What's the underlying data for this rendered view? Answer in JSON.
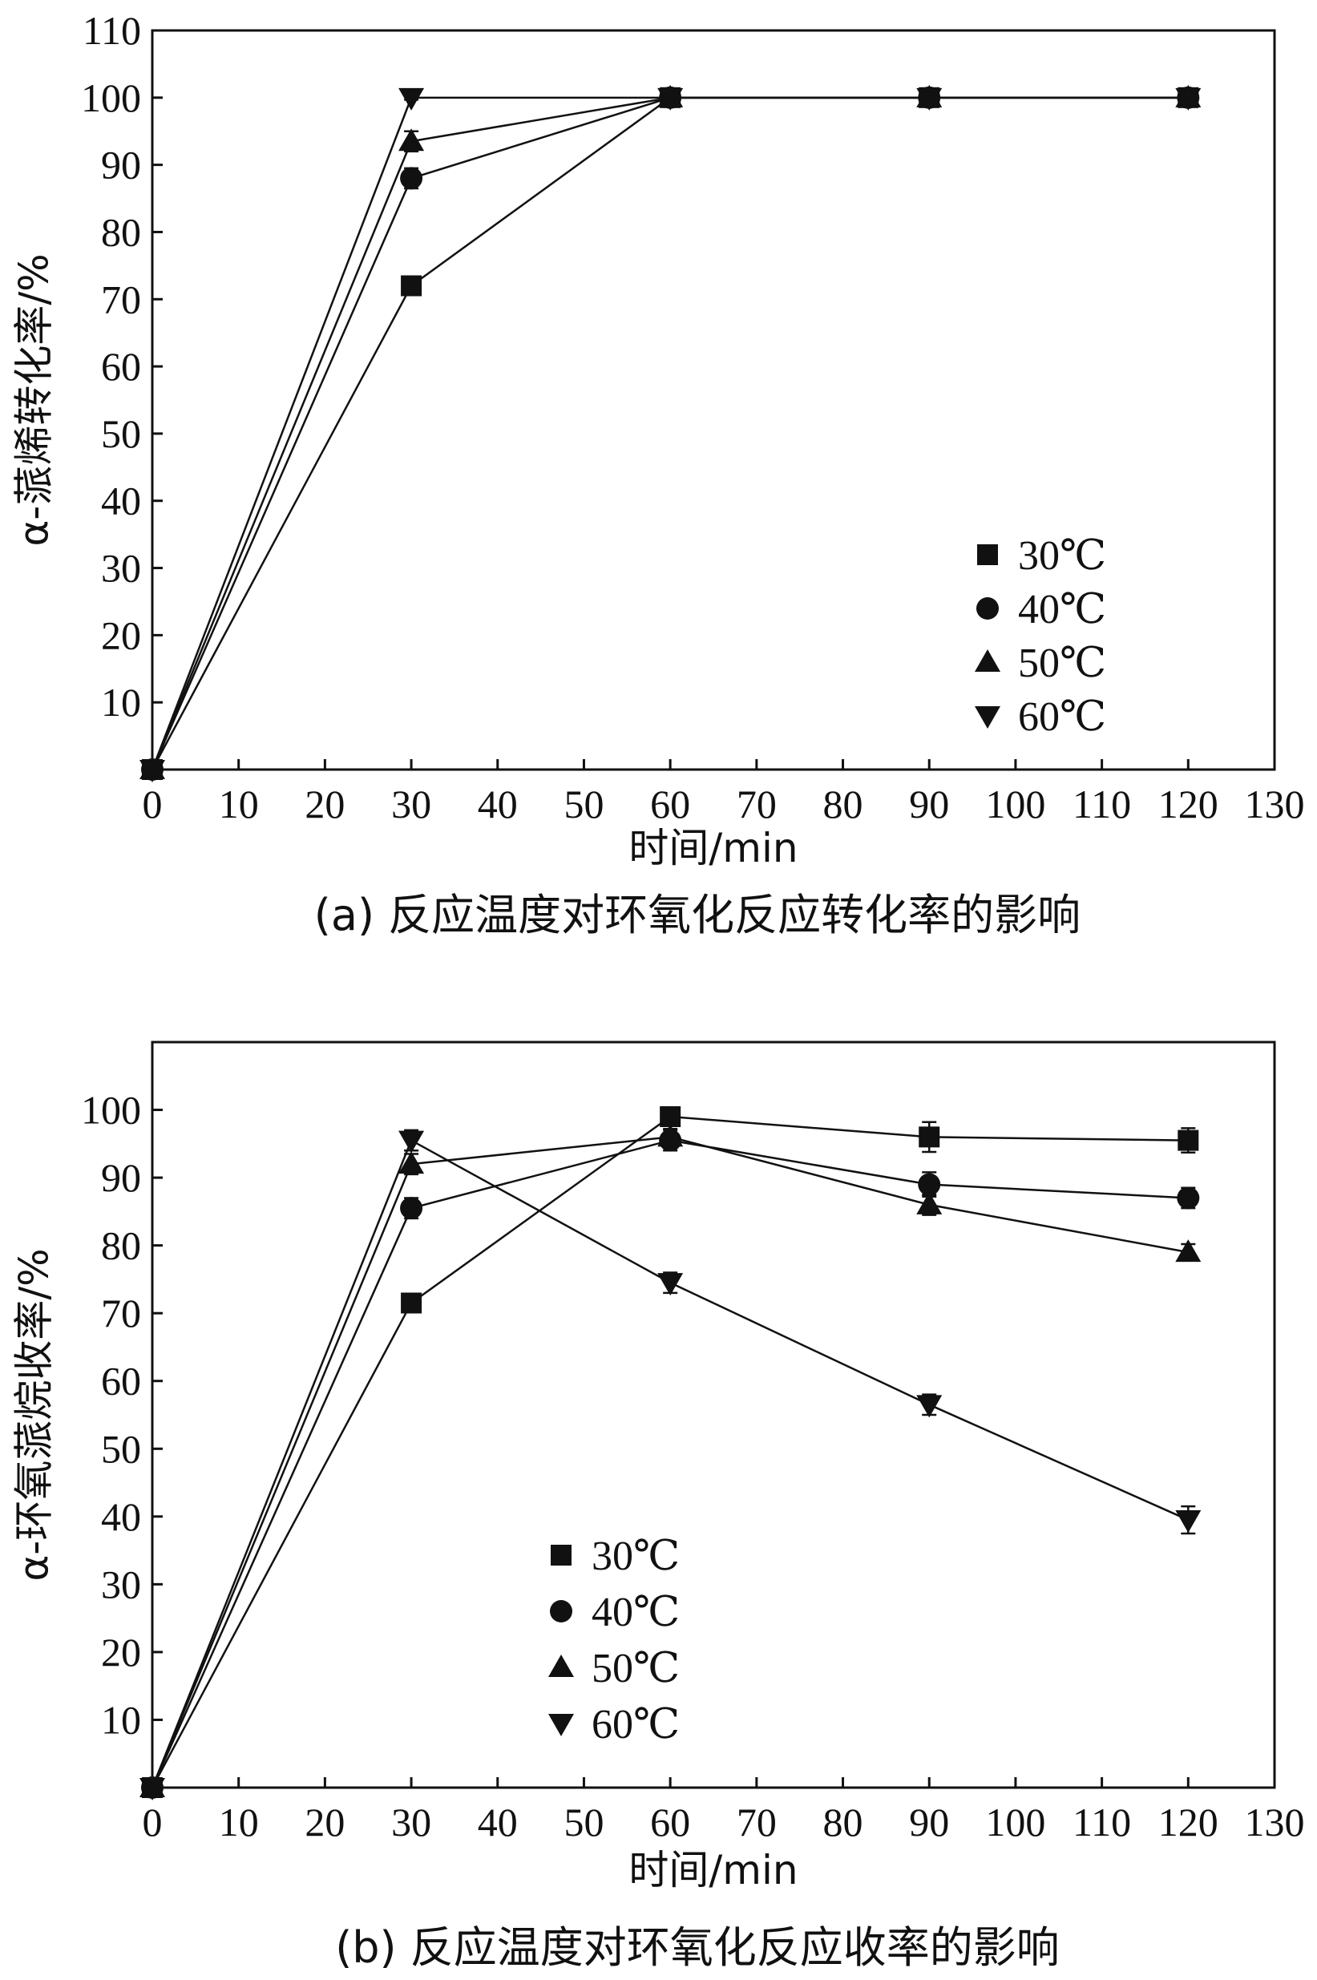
{
  "chart_data": [
    {
      "type": "line",
      "caption": "(a) 反应温度对环氧化反应转化率的影响",
      "xlabel": "时间/min",
      "ylabel": "α-蒎烯转化率/%",
      "xlim": [
        0,
        130
      ],
      "ylim": [
        0,
        110
      ],
      "xticks": [
        0,
        10,
        20,
        30,
        40,
        50,
        60,
        70,
        80,
        90,
        100,
        110,
        120,
        130
      ],
      "yticks": [
        10,
        20,
        30,
        40,
        50,
        60,
        70,
        80,
        90,
        100,
        110
      ],
      "grid": false,
      "legend_position": "bottom-right",
      "series": [
        {
          "name": "30℃",
          "marker": "square",
          "x": [
            0,
            30,
            60,
            90,
            120
          ],
          "y": [
            0,
            72,
            100,
            100,
            100
          ],
          "err": [
            0,
            0.8,
            0.3,
            0.3,
            0.3
          ]
        },
        {
          "name": "40℃",
          "marker": "circle",
          "x": [
            0,
            30,
            60,
            90,
            120
          ],
          "y": [
            0,
            88,
            100,
            100,
            100
          ],
          "err": [
            0,
            1.5,
            0.3,
            0.3,
            0.3
          ]
        },
        {
          "name": "50℃",
          "marker": "triangle-up",
          "x": [
            0,
            30,
            60,
            90,
            120
          ],
          "y": [
            0,
            93.5,
            100,
            100,
            100
          ],
          "err": [
            0,
            1.5,
            0.3,
            0.3,
            0.3
          ]
        },
        {
          "name": "60℃",
          "marker": "triangle-down",
          "x": [
            0,
            30,
            60,
            90,
            120
          ],
          "y": [
            0,
            100,
            100,
            100,
            100
          ],
          "err": [
            0,
            0.3,
            0.3,
            0.3,
            0.3
          ]
        }
      ]
    },
    {
      "type": "line",
      "caption": "(b) 反应温度对环氧化反应收率的影响",
      "xlabel": "时间/min",
      "ylabel": "α-环氧蒎烷收率/%",
      "xlim": [
        0,
        130
      ],
      "ylim": [
        0,
        110
      ],
      "xticks": [
        0,
        10,
        20,
        30,
        40,
        50,
        60,
        70,
        80,
        90,
        100,
        110,
        120,
        130
      ],
      "yticks": [
        10,
        20,
        30,
        40,
        50,
        60,
        70,
        80,
        90,
        100
      ],
      "grid": false,
      "legend_position": "bottom-left",
      "series": [
        {
          "name": "30℃",
          "marker": "square",
          "x": [
            0,
            30,
            60,
            90,
            120
          ],
          "y": [
            0,
            71.5,
            99,
            96,
            95.5
          ],
          "err": [
            0,
            1.2,
            1.0,
            2.2,
            1.8
          ]
        },
        {
          "name": "40℃",
          "marker": "circle",
          "x": [
            0,
            30,
            60,
            90,
            120
          ],
          "y": [
            0,
            85.5,
            95.5,
            89,
            87
          ],
          "err": [
            0,
            1.5,
            1.5,
            1.8,
            1.5
          ]
        },
        {
          "name": "50℃",
          "marker": "triangle-up",
          "x": [
            0,
            30,
            60,
            90,
            120
          ],
          "y": [
            0,
            92,
            96,
            86,
            79
          ],
          "err": [
            0,
            1.5,
            1.2,
            1.5,
            1.2
          ]
        },
        {
          "name": "60℃",
          "marker": "triangle-down",
          "x": [
            0,
            30,
            60,
            90,
            120
          ],
          "y": [
            0,
            95.5,
            74.5,
            56.5,
            39.5
          ],
          "err": [
            0,
            1.5,
            1.5,
            1.5,
            2.0
          ]
        }
      ]
    }
  ]
}
